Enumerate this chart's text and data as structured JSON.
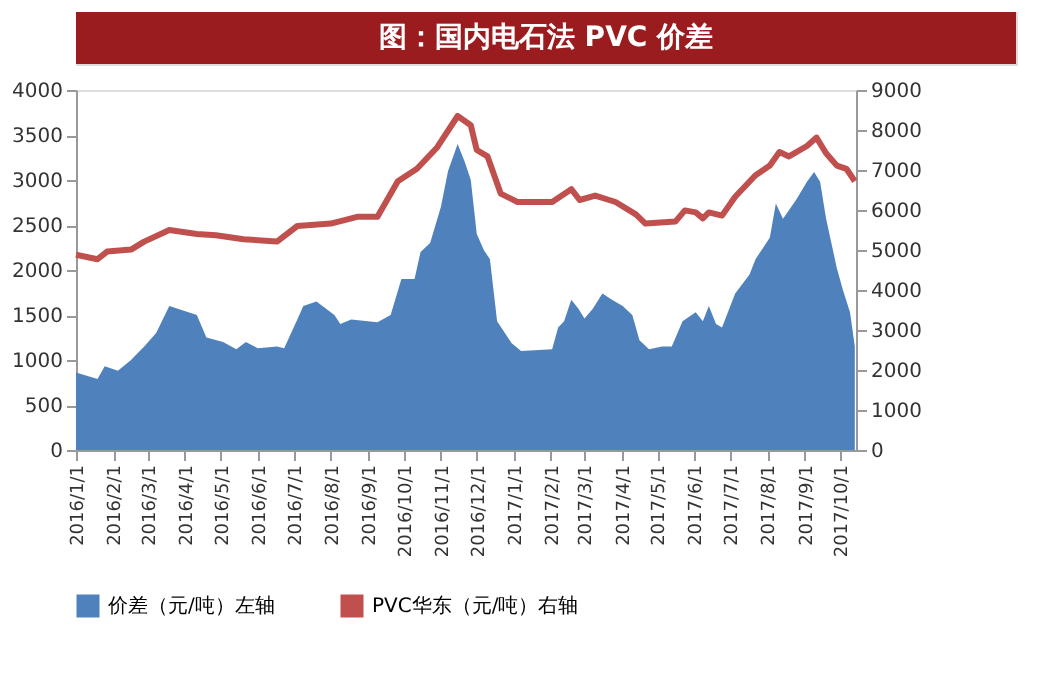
{
  "chart_data": {
    "type": "area",
    "title": "图：国内电石法 PVC 价差",
    "series": [
      {
        "name": "价差（元/吨）左轴",
        "color": "#4f81bd",
        "x": [
          "2016-01-01",
          "2016-01-19",
          "2016-01-25",
          "2016-02-05",
          "2016-02-16",
          "2016-02-27",
          "2016-03-08",
          "2016-03-19",
          "2016-04-11",
          "2016-04-19",
          "2016-05-03",
          "2016-05-14",
          "2016-05-22",
          "2016-06-01",
          "2016-06-17",
          "2016-06-23",
          "2016-07-04",
          "2016-07-09",
          "2016-07-20",
          "2016-08-04",
          "2016-08-09",
          "2016-08-18",
          "2016-09-09",
          "2016-09-20",
          "2016-09-29",
          "2016-10-10",
          "2016-10-15",
          "2016-10-23",
          "2016-11-01",
          "2016-11-07",
          "2016-11-15",
          "2016-11-21",
          "2016-11-26",
          "2016-12-01",
          "2016-12-07",
          "2016-12-12",
          "2016-12-18",
          "2016-12-23",
          "2016-12-30",
          "2017-01-07",
          "2017-02-02",
          "2017-02-07",
          "2017-02-12",
          "2017-02-18",
          "2017-02-24",
          "2017-03-01",
          "2017-03-08",
          "2017-03-16",
          "2017-03-24",
          "2017-04-02",
          "2017-04-10",
          "2017-04-16",
          "2017-04-24",
          "2017-05-05",
          "2017-05-13",
          "2017-05-22",
          "2017-06-02",
          "2017-06-08",
          "2017-06-13",
          "2017-06-19",
          "2017-06-24",
          "2017-07-05",
          "2017-07-17",
          "2017-07-22",
          "2017-08-03",
          "2017-08-08",
          "2017-08-14",
          "2017-08-25",
          "2017-09-03",
          "2017-09-09",
          "2017-09-14",
          "2017-09-19",
          "2017-09-28",
          "2017-10-03",
          "2017-10-09",
          "2017-10-13"
        ],
        "values": [
          860,
          790,
          930,
          880,
          1000,
          1150,
          1300,
          1600,
          1500,
          1250,
          1200,
          1120,
          1200,
          1130,
          1150,
          1130,
          1450,
          1600,
          1650,
          1500,
          1400,
          1450,
          1420,
          1500,
          1900,
          1900,
          2200,
          2300,
          2700,
          3100,
          3400,
          3200,
          3000,
          2400,
          2220,
          2120,
          1430,
          1330,
          1190,
          1100,
          1120,
          1360,
          1430,
          1670,
          1570,
          1460,
          1570,
          1740,
          1670,
          1600,
          1500,
          1220,
          1120,
          1150,
          1150,
          1430,
          1530,
          1430,
          1600,
          1400,
          1360,
          1740,
          1950,
          2120,
          2360,
          2740,
          2570,
          2780,
          2980,
          3090,
          2980,
          2570,
          2020,
          1780,
          1530,
          1150
        ]
      },
      {
        "name": "PVC华东（元/吨）右轴",
        "color": "#c0504d",
        "type": "line",
        "axis": "y2",
        "x": [
          "2016-01-01",
          "2016-01-19",
          "2016-01-27",
          "2016-02-16",
          "2016-02-27",
          "2016-03-19",
          "2016-04-11",
          "2016-04-27",
          "2016-05-20",
          "2016-06-17",
          "2016-07-04",
          "2016-08-01",
          "2016-08-23",
          "2016-09-09",
          "2016-09-26",
          "2016-10-12",
          "2016-10-29",
          "2016-11-15",
          "2016-11-26",
          "2016-12-01",
          "2016-12-10",
          "2016-12-21",
          "2017-01-04",
          "2017-02-02",
          "2017-02-18",
          "2017-02-25",
          "2017-03-10",
          "2017-03-27",
          "2017-04-13",
          "2017-04-21",
          "2017-05-16",
          "2017-05-24",
          "2017-06-02",
          "2017-06-08",
          "2017-06-13",
          "2017-06-24",
          "2017-07-05",
          "2017-07-22",
          "2017-08-03",
          "2017-08-11",
          "2017-08-19",
          "2017-09-03",
          "2017-09-11",
          "2017-09-19",
          "2017-09-28",
          "2017-10-06",
          "2017-10-13"
        ],
        "values": [
          4880,
          4770,
          4960,
          5010,
          5210,
          5500,
          5400,
          5370,
          5270,
          5210,
          5600,
          5660,
          5830,
          5830,
          6720,
          7030,
          7570,
          8350,
          8120,
          7500,
          7340,
          6410,
          6200,
          6200,
          6520,
          6250,
          6360,
          6200,
          5890,
          5660,
          5710,
          5990,
          5940,
          5790,
          5940,
          5860,
          6330,
          6870,
          7110,
          7450,
          7340,
          7600,
          7810,
          7420,
          7110,
          7030,
          6720
        ]
      }
    ],
    "xlim": [
      "2016-01-01",
      "2017-10-14"
    ],
    "xticks": [
      {
        "value": "2016-01-01",
        "label": "2016/1/1"
      },
      {
        "value": "2016-02-01",
        "label": "2016/2/1"
      },
      {
        "value": "2016-03-01",
        "label": "2016/3/1"
      },
      {
        "value": "2016-04-01",
        "label": "2016/4/1"
      },
      {
        "value": "2016-05-01",
        "label": "2016/5/1"
      },
      {
        "value": "2016-06-01",
        "label": "2016/6/1"
      },
      {
        "value": "2016-07-01",
        "label": "2016/7/1"
      },
      {
        "value": "2016-08-01",
        "label": "2016/8/1"
      },
      {
        "value": "2016-09-01",
        "label": "2016/9/1"
      },
      {
        "value": "2016-10-01",
        "label": "2016/10/1"
      },
      {
        "value": "2016-11-01",
        "label": "2016/11/1"
      },
      {
        "value": "2016-12-01",
        "label": "2016/12/1"
      },
      {
        "value": "2017-01-01",
        "label": "2017/1/1"
      },
      {
        "value": "2017-02-01",
        "label": "2017/2/1"
      },
      {
        "value": "2017-03-01",
        "label": "2017/3/1"
      },
      {
        "value": "2017-04-01",
        "label": "2017/4/1"
      },
      {
        "value": "2017-05-01",
        "label": "2017/5/1"
      },
      {
        "value": "2017-06-01",
        "label": "2017/6/1"
      },
      {
        "value": "2017-07-01",
        "label": "2017/7/1"
      },
      {
        "value": "2017-08-01",
        "label": "2017/8/1"
      },
      {
        "value": "2017-09-01",
        "label": "2017/9/1"
      },
      {
        "value": "2017-10-01",
        "label": "2017/10/1"
      }
    ],
    "ylim": [
      0,
      4000
    ],
    "yticks": [
      0,
      500,
      1000,
      1500,
      2000,
      2500,
      3000,
      3500,
      4000
    ],
    "y2lim": [
      0,
      9000
    ],
    "y2ticks": [
      0,
      1000,
      2000,
      3000,
      4000,
      5000,
      6000,
      7000,
      8000,
      9000
    ],
    "grid": false,
    "legend": "bottom"
  }
}
